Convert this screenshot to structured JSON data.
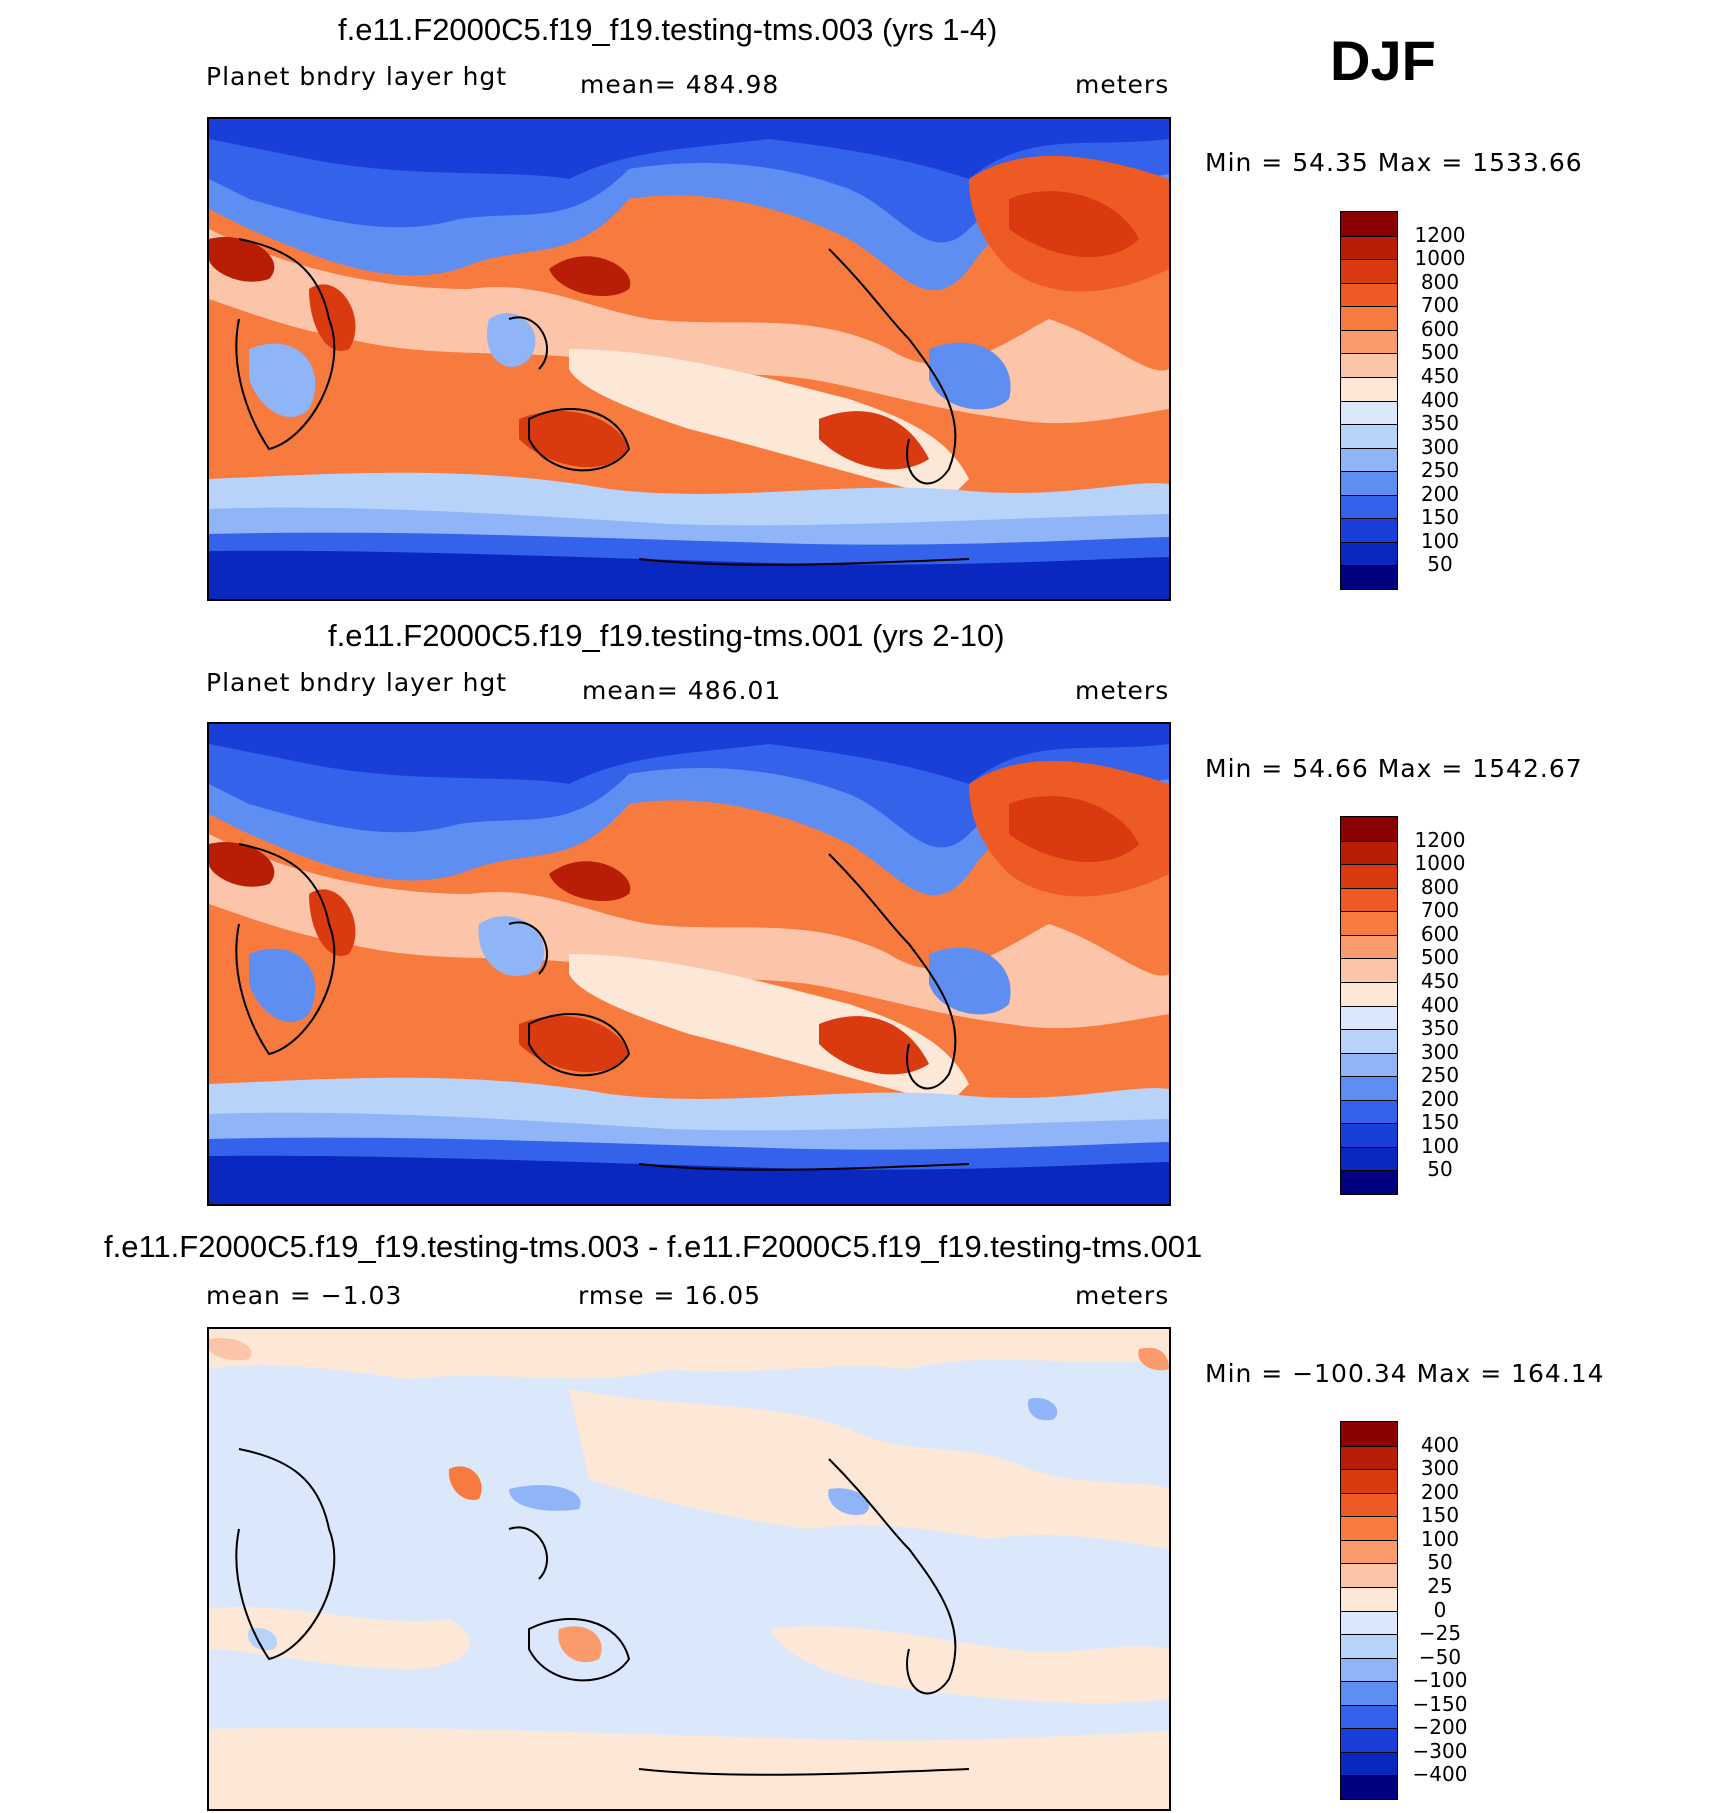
{
  "season": "DJF",
  "panels": [
    {
      "title": "f.e11.F2000C5.f19_f19.testing-tms.003 (yrs 1-4)",
      "variable": "Planet bndry layer hgt",
      "stat": "mean=  484.98",
      "units": "meters",
      "minmax": "Min =   54.35 Max =  1533.66",
      "levels": [
        "1200",
        "1000",
        "800",
        "700",
        "600",
        "500",
        "450",
        "400",
        "350",
        "300",
        "250",
        "200",
        "150",
        "100",
        "50"
      ],
      "colors": [
        "#8b0000",
        "#b81e06",
        "#d93a0f",
        "#ee5a24",
        "#f77b3f",
        "#fb9a6a",
        "#fcc4a8",
        "#fde8d8",
        "#dbe8fb",
        "#b8d3fa",
        "#8fb4f7",
        "#5f8ef2",
        "#3462ea",
        "#1a3fd8",
        "#0a27bf",
        "#000080"
      ]
    },
    {
      "title": "f.e11.F2000C5.f19_f19.testing-tms.001 (yrs 2-10)",
      "variable": "Planet bndry layer hgt",
      "stat": "mean=  486.01",
      "units": "meters",
      "minmax": "Min =   54.66 Max =  1542.67",
      "levels": [
        "1200",
        "1000",
        "800",
        "700",
        "600",
        "500",
        "450",
        "400",
        "350",
        "300",
        "250",
        "200",
        "150",
        "100",
        "50"
      ],
      "colors": [
        "#8b0000",
        "#b81e06",
        "#d93a0f",
        "#ee5a24",
        "#f77b3f",
        "#fb9a6a",
        "#fcc4a8",
        "#fde8d8",
        "#dbe8fb",
        "#b8d3fa",
        "#8fb4f7",
        "#5f8ef2",
        "#3462ea",
        "#1a3fd8",
        "#0a27bf",
        "#000080"
      ]
    },
    {
      "title": "f.e11.F2000C5.f19_f19.testing-tms.003 - f.e11.F2000C5.f19_f19.testing-tms.001",
      "variable": "mean =   −1.03",
      "stat": "rmse =   16.05",
      "units": "meters",
      "minmax": "Min = −100.34  Max =  164.14",
      "levels": [
        "400",
        "300",
        "200",
        "150",
        "100",
        "50",
        "25",
        "0",
        "−25",
        "−50",
        "−100",
        "−150",
        "−200",
        "−300",
        "−400"
      ],
      "colors": [
        "#8b0000",
        "#b81e06",
        "#d93a0f",
        "#ee5a24",
        "#f77b3f",
        "#fb9a6a",
        "#fcc4a8",
        "#fde8d8",
        "#dbe8fb",
        "#b8d3fa",
        "#8fb4f7",
        "#5f8ef2",
        "#3462ea",
        "#1a3fd8",
        "#0a27bf",
        "#000080"
      ]
    }
  ]
}
